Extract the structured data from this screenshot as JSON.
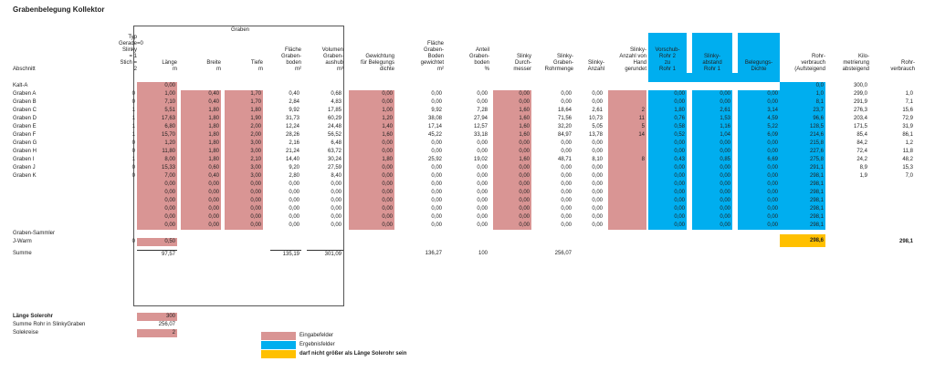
{
  "title": "Grabenbelegung Kollektor",
  "group_header": "Graben",
  "columns": [
    {
      "key": "typ",
      "label": "Typ\nGerade=0\nSlinky = 1\nStich = 2"
    },
    {
      "key": "laenge",
      "label": "Länge\nm"
    },
    {
      "key": "breite",
      "label": "Breite\nm"
    },
    {
      "key": "tiefe",
      "label": "Tiefe\nm"
    },
    {
      "key": "flaeche",
      "label": "Fläche\nGraben-\nboden\nm²"
    },
    {
      "key": "volumen",
      "label": "Volumen\nGraben-\naushub\nm³"
    },
    {
      "key": "gewichtung",
      "label": "Gewichtung\nfür Belegungs\ndichte"
    },
    {
      "key": "flgew",
      "label": "Fläche\nGraben-\nBoden\ngewichtet\nm²"
    },
    {
      "key": "anteil",
      "label": "Anteil\nGraben-\nboden\n%"
    },
    {
      "key": "durchm",
      "label": "Slinky\nDurch-\nmesser"
    },
    {
      "key": "rohrmenge",
      "label": "Slinky-\nGraben-\nRohrmenge"
    },
    {
      "key": "anzahl",
      "label": "Slinky-\nAnzahl"
    },
    {
      "key": "anzhand",
      "label": "Slinky-\nAnzahl von\nHand\ngerundet"
    },
    {
      "key": "vorschub",
      "label": "Vorschub-\nRohr 2\nzu\nRohr 1"
    },
    {
      "key": "abstand",
      "label": "Slinky-\nabstand\nRohr 1"
    },
    {
      "key": "dichte",
      "label": "Belegungs-\nDichte"
    },
    {
      "key": "rohrv",
      "label": "Rohr-\nverbrauch\n(Aufsteigend"
    },
    {
      "key": "kilo",
      "label": "Kilo-\nmetrierung\nabsteigend"
    },
    {
      "key": "rohrv2",
      "label": "Rohr-\nverbrauch"
    }
  ],
  "row_header": "Abschnitt",
  "rows": [
    {
      "label": "Kalt-A",
      "typ": "",
      "laenge": "0,00",
      "breite": "",
      "tiefe": "",
      "flaeche": "",
      "volumen": "",
      "gewichtung": "",
      "flgew": "",
      "anteil": "",
      "durchm": "",
      "rohrmenge": "",
      "anzahl": "",
      "anzhand": "",
      "vorschub": "",
      "abstand": "",
      "dichte": "",
      "rohrv": "0,0",
      "kilo": "300,0",
      "rohrv2": ""
    },
    {
      "label": "Graben A",
      "typ": "0",
      "laenge": "1,00",
      "breite": "0,40",
      "tiefe": "1,70",
      "flaeche": "0,40",
      "volumen": "0,68",
      "gewichtung": "0,00",
      "flgew": "0,00",
      "anteil": "0,00",
      "durchm": "0,00",
      "rohrmenge": "0,00",
      "anzahl": "0,00",
      "anzhand": "",
      "vorschub": "0,00",
      "abstand": "0,00",
      "dichte": "0,00",
      "rohrv": "1,0",
      "kilo": "299,0",
      "rohrv2": "1,0"
    },
    {
      "label": "Graben B",
      "typ": "0",
      "laenge": "7,10",
      "breite": "0,40",
      "tiefe": "1,70",
      "flaeche": "2,84",
      "volumen": "4,83",
      "gewichtung": "0,00",
      "flgew": "0,00",
      "anteil": "0,00",
      "durchm": "0,00",
      "rohrmenge": "0,00",
      "anzahl": "0,00",
      "anzhand": "",
      "vorschub": "0,00",
      "abstand": "0,00",
      "dichte": "0,00",
      "rohrv": "8,1",
      "kilo": "291,9",
      "rohrv2": "7,1"
    },
    {
      "label": "Graben C",
      "typ": "1",
      "laenge": "5,51",
      "breite": "1,80",
      "tiefe": "1,80",
      "flaeche": "9,92",
      "volumen": "17,85",
      "gewichtung": "1,00",
      "flgew": "9,92",
      "anteil": "7,28",
      "durchm": "1,60",
      "rohrmenge": "18,64",
      "anzahl": "2,61",
      "anzhand": "2",
      "vorschub": "1,80",
      "abstand": "2,61",
      "dichte": "3,14",
      "rohrv": "23,7",
      "kilo": "276,3",
      "rohrv2": "15,6"
    },
    {
      "label": "Graben D",
      "typ": "1",
      "laenge": "17,63",
      "breite": "1,80",
      "tiefe": "1,90",
      "flaeche": "31,73",
      "volumen": "60,29",
      "gewichtung": "1,20",
      "flgew": "38,08",
      "anteil": "27,94",
      "durchm": "1,60",
      "rohrmenge": "71,56",
      "anzahl": "10,73",
      "anzhand": "11",
      "vorschub": "0,76",
      "abstand": "1,53",
      "dichte": "4,59",
      "rohrv": "96,6",
      "kilo": "203,4",
      "rohrv2": "72,9"
    },
    {
      "label": "Graben E",
      "typ": "1",
      "laenge": "6,80",
      "breite": "1,80",
      "tiefe": "2,00",
      "flaeche": "12,24",
      "volumen": "24,48",
      "gewichtung": "1,40",
      "flgew": "17,14",
      "anteil": "12,57",
      "durchm": "1,60",
      "rohrmenge": "32,20",
      "anzahl": "5,05",
      "anzhand": "5",
      "vorschub": "0,58",
      "abstand": "1,16",
      "dichte": "5,22",
      "rohrv": "128,5",
      "kilo": "171,5",
      "rohrv2": "31,9"
    },
    {
      "label": "Graben F",
      "typ": "1",
      "laenge": "15,70",
      "breite": "1,80",
      "tiefe": "2,00",
      "flaeche": "28,26",
      "volumen": "56,52",
      "gewichtung": "1,60",
      "flgew": "45,22",
      "anteil": "33,18",
      "durchm": "1,60",
      "rohrmenge": "84,97",
      "anzahl": "13,78",
      "anzhand": "14",
      "vorschub": "0,52",
      "abstand": "1,04",
      "dichte": "6,09",
      "rohrv": "214,6",
      "kilo": "85,4",
      "rohrv2": "86,1"
    },
    {
      "label": "Graben G",
      "typ": "0",
      "laenge": "1,20",
      "breite": "1,80",
      "tiefe": "3,00",
      "flaeche": "2,16",
      "volumen": "6,48",
      "gewichtung": "0,00",
      "flgew": "0,00",
      "anteil": "0,00",
      "durchm": "0,00",
      "rohrmenge": "0,00",
      "anzahl": "0,00",
      "anzhand": "",
      "vorschub": "0,00",
      "abstand": "0,00",
      "dichte": "0,00",
      "rohrv": "215,8",
      "kilo": "84,2",
      "rohrv2": "1,2"
    },
    {
      "label": "Graben H",
      "typ": "0",
      "laenge": "11,80",
      "breite": "1,80",
      "tiefe": "3,00",
      "flaeche": "21,24",
      "volumen": "63,72",
      "gewichtung": "0,00",
      "flgew": "0,00",
      "anteil": "0,00",
      "durchm": "0,00",
      "rohrmenge": "0,00",
      "anzahl": "0,00",
      "anzhand": "",
      "vorschub": "0,00",
      "abstand": "0,00",
      "dichte": "0,00",
      "rohrv": "227,6",
      "kilo": "72,4",
      "rohrv2": "11,8"
    },
    {
      "label": "Graben I",
      "typ": "1",
      "laenge": "8,00",
      "breite": "1,80",
      "tiefe": "2,10",
      "flaeche": "14,40",
      "volumen": "30,24",
      "gewichtung": "1,80",
      "flgew": "25,92",
      "anteil": "19,02",
      "durchm": "1,60",
      "rohrmenge": "48,71",
      "anzahl": "8,10",
      "anzhand": "8",
      "vorschub": "0,43",
      "abstand": "0,85",
      "dichte": "6,69",
      "rohrv": "275,8",
      "kilo": "24,2",
      "rohrv2": "48,2"
    },
    {
      "label": "Graben J",
      "typ": "0",
      "laenge": "15,33",
      "breite": "0,60",
      "tiefe": "3,00",
      "flaeche": "9,20",
      "volumen": "27,59",
      "gewichtung": "0,00",
      "flgew": "0,00",
      "anteil": "0,00",
      "durchm": "0,00",
      "rohrmenge": "0,00",
      "anzahl": "0,00",
      "anzhand": "",
      "vorschub": "0,00",
      "abstand": "0,00",
      "dichte": "0,00",
      "rohrv": "291,1",
      "kilo": "8,9",
      "rohrv2": "15,3"
    },
    {
      "label": "Graben K",
      "typ": "0",
      "laenge": "7,00",
      "breite": "0,40",
      "tiefe": "3,00",
      "flaeche": "2,80",
      "volumen": "8,40",
      "gewichtung": "0,00",
      "flgew": "0,00",
      "anteil": "0,00",
      "durchm": "0,00",
      "rohrmenge": "0,00",
      "anzahl": "0,00",
      "anzhand": "",
      "vorschub": "0,00",
      "abstand": "0,00",
      "dichte": "0,00",
      "rohrv": "298,1",
      "kilo": "1,9",
      "rohrv2": "7,0"
    },
    {
      "label": "",
      "typ": "",
      "laenge": "0,00",
      "breite": "0,00",
      "tiefe": "0,00",
      "flaeche": "0,00",
      "volumen": "0,00",
      "gewichtung": "0,00",
      "flgew": "0,00",
      "anteil": "0,00",
      "durchm": "0,00",
      "rohrmenge": "0,00",
      "anzahl": "0,00",
      "anzhand": "",
      "vorschub": "0,00",
      "abstand": "0,00",
      "dichte": "0,00",
      "rohrv": "298,1",
      "kilo": "",
      "rohrv2": ""
    },
    {
      "label": "",
      "typ": "",
      "laenge": "0,00",
      "breite": "0,00",
      "tiefe": "0,00",
      "flaeche": "0,00",
      "volumen": "0,00",
      "gewichtung": "0,00",
      "flgew": "0,00",
      "anteil": "0,00",
      "durchm": "0,00",
      "rohrmenge": "0,00",
      "anzahl": "0,00",
      "anzhand": "",
      "vorschub": "0,00",
      "abstand": "0,00",
      "dichte": "0,00",
      "rohrv": "298,1",
      "kilo": "",
      "rohrv2": ""
    },
    {
      "label": "",
      "typ": "",
      "laenge": "0,00",
      "breite": "0,00",
      "tiefe": "0,00",
      "flaeche": "0,00",
      "volumen": "0,00",
      "gewichtung": "0,00",
      "flgew": "0,00",
      "anteil": "0,00",
      "durchm": "0,00",
      "rohrmenge": "0,00",
      "anzahl": "0,00",
      "anzhand": "",
      "vorschub": "0,00",
      "abstand": "0,00",
      "dichte": "0,00",
      "rohrv": "298,1",
      "kilo": "",
      "rohrv2": ""
    },
    {
      "label": "",
      "typ": "",
      "laenge": "0,00",
      "breite": "0,00",
      "tiefe": "0,00",
      "flaeche": "0,00",
      "volumen": "0,00",
      "gewichtung": "0,00",
      "flgew": "0,00",
      "anteil": "0,00",
      "durchm": "0,00",
      "rohrmenge": "0,00",
      "anzahl": "0,00",
      "anzhand": "",
      "vorschub": "0,00",
      "abstand": "0,00",
      "dichte": "0,00",
      "rohrv": "298,1",
      "kilo": "",
      "rohrv2": ""
    },
    {
      "label": "",
      "typ": "",
      "laenge": "0,00",
      "breite": "0,00",
      "tiefe": "0,00",
      "flaeche": "0,00",
      "volumen": "0,00",
      "gewichtung": "0,00",
      "flgew": "0,00",
      "anteil": "0,00",
      "durchm": "0,00",
      "rohrmenge": "0,00",
      "anzahl": "0,00",
      "anzhand": "",
      "vorschub": "0,00",
      "abstand": "0,00",
      "dichte": "0,00",
      "rohrv": "298,1",
      "kilo": "",
      "rohrv2": ""
    },
    {
      "label": "",
      "typ": "",
      "laenge": "0,00",
      "breite": "0,00",
      "tiefe": "0,00",
      "flaeche": "0,00",
      "volumen": "0,00",
      "gewichtung": "0,00",
      "flgew": "0,00",
      "anteil": "0,00",
      "durchm": "0,00",
      "rohrmenge": "0,00",
      "anzahl": "0,00",
      "anzhand": "",
      "vorschub": "0,00",
      "abstand": "0,00",
      "dichte": "0,00",
      "rohrv": "298,1",
      "kilo": "",
      "rohrv2": ""
    },
    {
      "label": "Graben-Sammler",
      "typ": "",
      "laenge": "",
      "breite": "",
      "tiefe": "",
      "flaeche": "",
      "volumen": "",
      "gewichtung": "",
      "flgew": "",
      "anteil": "",
      "durchm": "",
      "rohrmenge": "",
      "anzahl": "",
      "anzhand": "",
      "vorschub": "",
      "abstand": "",
      "dichte": "",
      "rohrv": "",
      "kilo": "",
      "rohrv2": ""
    },
    {
      "label": "J-Warm",
      "typ": "0",
      "laenge": "0,50",
      "breite": "",
      "tiefe": "",
      "flaeche": "",
      "volumen": "",
      "gewichtung": "",
      "flgew": "",
      "anteil": "",
      "durchm": "",
      "rohrmenge": "",
      "anzahl": "",
      "anzhand": "",
      "vorschub": "",
      "abstand": "",
      "dichte": "",
      "rohrv": "298,6",
      "kilo": "",
      "rohrv2": "298,1"
    }
  ],
  "summe": {
    "label": "Summe",
    "laenge": "97,57",
    "flaeche": "135,19",
    "volumen": "301,09",
    "flgew": "136,27",
    "anteil": "100",
    "rohrmenge": "256,07"
  },
  "bottom": [
    {
      "label": "Länge Solerohr",
      "value": "300",
      "style": "pink",
      "bold": true
    },
    {
      "label": "Summe Rohr in SlinkyGraben",
      "value": "256,07",
      "style": "plain",
      "bold": false
    },
    {
      "label": "Solekreise",
      "value": "2",
      "style": "pink",
      "bold": false
    }
  ],
  "legend": [
    {
      "label": "Eingabefelder",
      "color": "#d99594"
    },
    {
      "label": "Ergebnisfelder",
      "color": "#00aeef"
    },
    {
      "label": "darf nicht größer als Länge Solerohr sein",
      "color": "#ffc000"
    }
  ],
  "colors": {
    "input": "#d99594",
    "result": "#00aeef",
    "warning": "#ffc000"
  }
}
